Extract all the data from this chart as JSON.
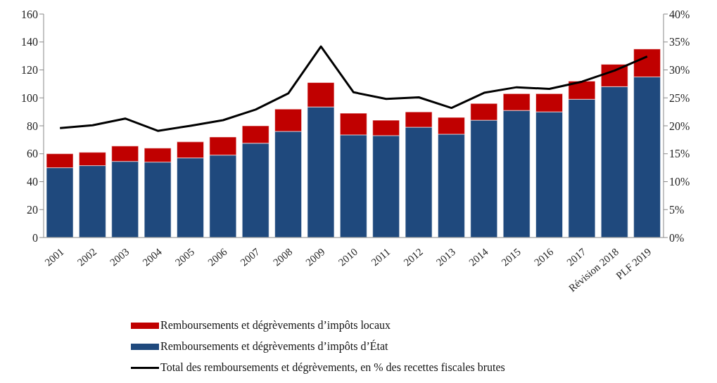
{
  "chart_data": {
    "type": "bar",
    "stacked": true,
    "categories": [
      "2001",
      "2002",
      "2003",
      "2004",
      "2005",
      "2006",
      "2007",
      "2008",
      "2009",
      "2010",
      "2011",
      "2012",
      "2013",
      "2014",
      "2015",
      "2016",
      "2017",
      "Révision 2018",
      "PLF 2019"
    ],
    "series": [
      {
        "name": "Remboursements et dégrèvements d’impôts d’État",
        "color": "#1f497d",
        "values": [
          50,
          51.5,
          54.5,
          54,
          57,
          59,
          67.5,
          76,
          93.5,
          73.5,
          73,
          79,
          74,
          84,
          91,
          90,
          99,
          108,
          115
        ]
      },
      {
        "name": "Remboursements et dégrèvements d’impôts locaux",
        "color": "#c00000",
        "values": [
          10,
          9.5,
          11,
          10,
          11.5,
          13,
          12.5,
          16,
          17.5,
          15.5,
          11,
          11,
          12,
          12,
          12,
          13,
          13,
          16,
          20
        ]
      },
      {
        "name": "Total des remboursements et dégrèvements, en % des recettes fiscales brutes",
        "type": "line",
        "axis": "y2",
        "color": "#000000",
        "values": [
          19.6,
          20.1,
          21.3,
          19.1,
          20,
          21,
          22.9,
          25.8,
          34.2,
          26,
          24.8,
          25.1,
          23.2,
          25.9,
          26.9,
          26.6,
          27.9,
          29.9,
          32.4
        ]
      }
    ],
    "ylim": [
      0,
      160
    ],
    "yticks": [
      0,
      20,
      40,
      60,
      80,
      100,
      120,
      140,
      160
    ],
    "y2lim": [
      0,
      40
    ],
    "y2ticks": [
      {
        "value": 0,
        "label": "0%"
      },
      {
        "value": 5,
        "label": "5%"
      },
      {
        "value": 10,
        "label": "10%"
      },
      {
        "value": 15,
        "label": "15%"
      },
      {
        "value": 20,
        "label": "20%"
      },
      {
        "value": 25,
        "label": "25%"
      },
      {
        "value": 30,
        "label": "30%"
      },
      {
        "value": 35,
        "label": "35%"
      },
      {
        "value": 40,
        "label": "40%"
      }
    ],
    "grid": false,
    "legend": "bottom",
    "marker": "none"
  }
}
